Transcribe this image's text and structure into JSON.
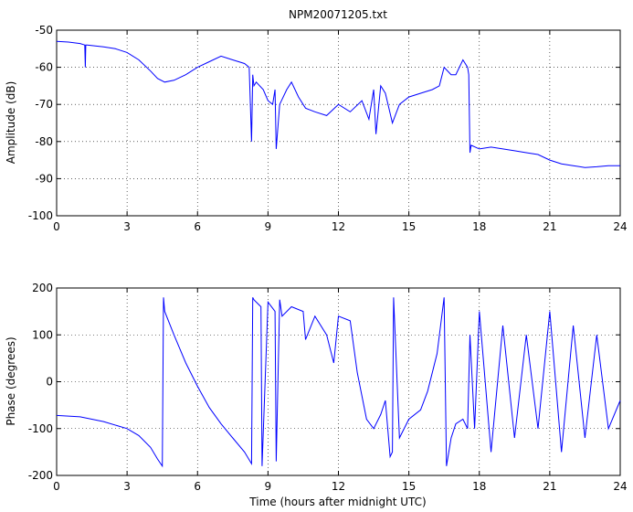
{
  "figure": {
    "title": "NPM20071205.txt",
    "line_color": "#0000ff"
  },
  "chart_data": [
    {
      "type": "line",
      "title": "NPM20071205.txt",
      "xlabel": "",
      "ylabel": "Amplitude (dB)",
      "xlim": [
        0,
        24
      ],
      "ylim": [
        -100,
        -50
      ],
      "grid": true,
      "xticks": [
        0,
        3,
        6,
        9,
        12,
        15,
        18,
        21,
        24
      ],
      "yticks": [
        -100,
        -90,
        -80,
        -70,
        -60,
        -50
      ],
      "series": [
        {
          "x": [
            0,
            0.5,
            1.0,
            1.2,
            1.22,
            1.24,
            1.3,
            2.0,
            2.5,
            3.0,
            3.5,
            4.0,
            4.3,
            4.6,
            5.0,
            5.5,
            6.0,
            6.5,
            7.0,
            7.5,
            8.0,
            8.2,
            8.3,
            8.35,
            8.4,
            8.5,
            8.8,
            9.0,
            9.2,
            9.3,
            9.35,
            9.5,
            9.8,
            10.0,
            10.3,
            10.6,
            11.0,
            11.5,
            12.0,
            12.5,
            13.0,
            13.3,
            13.5,
            13.6,
            13.8,
            14.0,
            14.3,
            14.6,
            15.0,
            15.5,
            16.0,
            16.3,
            16.5,
            16.8,
            17.0,
            17.3,
            17.5,
            17.55,
            17.6,
            17.65,
            18.0,
            18.5,
            19.0,
            19.5,
            20.0,
            20.5,
            21.0,
            21.5,
            22.0,
            22.5,
            23.0,
            23.5,
            24.0
          ],
          "y": [
            -53,
            -53.2,
            -53.6,
            -54,
            -60,
            -54,
            -54,
            -54.5,
            -55,
            -56,
            -58,
            -61,
            -63,
            -64,
            -63.5,
            -62,
            -60,
            -58.5,
            -57,
            -58,
            -59,
            -60,
            -80,
            -62,
            -65,
            -64,
            -66,
            -69,
            -70,
            -66,
            -82,
            -70,
            -66,
            -64,
            -68,
            -71,
            -72,
            -73,
            -70,
            -72,
            -69,
            -74,
            -66,
            -78,
            -65,
            -67,
            -75,
            -70,
            -68,
            -67,
            -66,
            -65,
            -60,
            -62,
            -62,
            -58,
            -60,
            -62,
            -83,
            -81,
            -82,
            -81.5,
            -82,
            -82.5,
            -83,
            -83.5,
            -85,
            -86,
            -86.5,
            -87,
            -86.8,
            -86.5,
            -86.5
          ]
        }
      ]
    },
    {
      "type": "line",
      "title": "",
      "xlabel": "Time (hours after midnight UTC)",
      "ylabel": "Phase (degrees)",
      "xlim": [
        0,
        24
      ],
      "ylim": [
        -200,
        200
      ],
      "grid": true,
      "xticks": [
        0,
        3,
        6,
        9,
        12,
        15,
        18,
        21,
        24
      ],
      "yticks": [
        -200,
        -100,
        0,
        100,
        200
      ],
      "series": [
        {
          "x": [
            0,
            1.0,
            2.0,
            3.0,
            3.5,
            4.0,
            4.3,
            4.5,
            4.55,
            4.6,
            5.0,
            5.5,
            6.0,
            6.5,
            7.0,
            7.5,
            8.0,
            8.3,
            8.35,
            8.4,
            8.5,
            8.7,
            8.75,
            9.0,
            9.3,
            9.35,
            9.5,
            9.6,
            10.0,
            10.5,
            10.6,
            11.0,
            11.5,
            11.8,
            12.0,
            12.5,
            12.8,
            13.0,
            13.2,
            13.5,
            13.8,
            14.0,
            14.2,
            14.3,
            14.35,
            14.6,
            15.0,
            15.5,
            15.8,
            16.2,
            16.5,
            16.6,
            16.8,
            17.0,
            17.3,
            17.5,
            17.6,
            17.8,
            18.0,
            18.5,
            19.0,
            19.5,
            20.0,
            20.5,
            21.0,
            21.5,
            22.0,
            22.5,
            23.0,
            23.5,
            24.0
          ],
          "y": [
            -72,
            -75,
            -85,
            -100,
            -115,
            -140,
            -165,
            -180,
            180,
            150,
            100,
            40,
            -10,
            -55,
            -90,
            -120,
            -150,
            -175,
            180,
            175,
            170,
            160,
            -180,
            170,
            150,
            -170,
            175,
            140,
            160,
            150,
            90,
            140,
            100,
            40,
            140,
            130,
            20,
            -30,
            -80,
            -100,
            -70,
            -40,
            -160,
            -150,
            180,
            -120,
            -80,
            -60,
            -20,
            60,
            180,
            -180,
            -120,
            -90,
            -80,
            -100,
            100,
            -100,
            150,
            -150,
            120,
            -120,
            100,
            -100,
            150,
            -150,
            120,
            -120,
            100,
            -100,
            -40
          ]
        }
      ]
    }
  ]
}
